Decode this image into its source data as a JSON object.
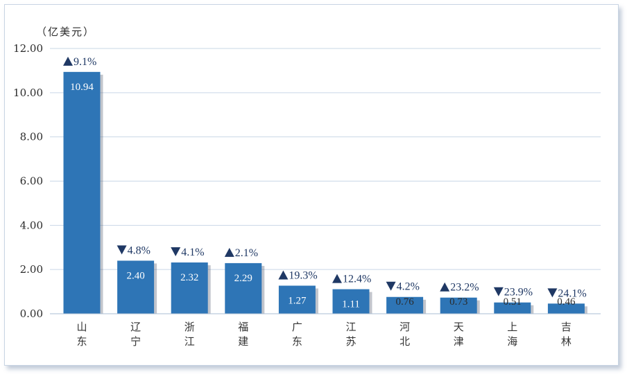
{
  "chart_data": {
    "type": "bar",
    "unit_label": "（亿美元）",
    "categories": [
      "山东",
      "辽宁",
      "浙江",
      "福建",
      "广东",
      "江苏",
      "河北",
      "天津",
      "上海",
      "吉林"
    ],
    "values": [
      10.94,
      2.4,
      2.32,
      2.29,
      1.27,
      1.11,
      0.76,
      0.73,
      0.51,
      0.46
    ],
    "value_labels": [
      "10.94",
      "2.40",
      "2.32",
      "2.29",
      "1.27",
      "1.11",
      "0.76",
      "0.73",
      "0.51",
      "0.46"
    ],
    "changes": [
      {
        "direction": "up",
        "text": "9.1%"
      },
      {
        "direction": "down",
        "text": "4.8%"
      },
      {
        "direction": "down",
        "text": "4.1%"
      },
      {
        "direction": "up",
        "text": "2.1%"
      },
      {
        "direction": "up",
        "text": "19.3%"
      },
      {
        "direction": "up",
        "text": "12.4%"
      },
      {
        "direction": "down",
        "text": "4.2%"
      },
      {
        "direction": "up",
        "text": "23.2%"
      },
      {
        "direction": "down",
        "text": "23.9%"
      },
      {
        "direction": "down",
        "text": "24.1%"
      }
    ],
    "ylim": [
      0,
      12
    ],
    "yticks": [
      "0.00",
      "2.00",
      "4.00",
      "6.00",
      "8.00",
      "10.00",
      "12.00"
    ],
    "grid": true,
    "bar_color": "#2e75b6",
    "marker_color": "#1f3864"
  }
}
